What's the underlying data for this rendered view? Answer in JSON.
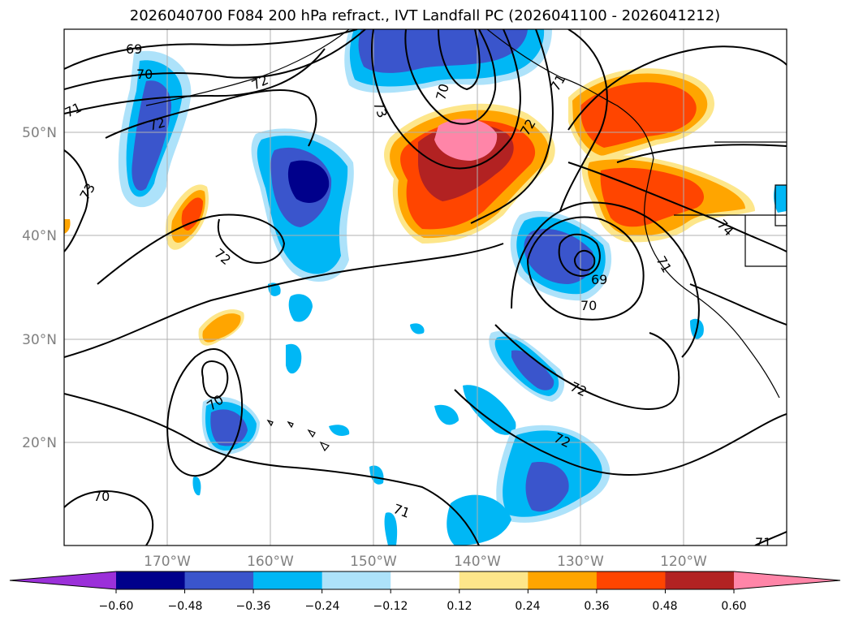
{
  "title": "2026040700 F084 200 hPa refract., IVT Landfall PC (2026041100 - 2026041212)",
  "map": {
    "lon_labels": [
      "170°W",
      "160°W",
      "150°W",
      "140°W",
      "130°W",
      "120°W"
    ],
    "lat_labels": [
      "50°N",
      "40°N",
      "30°N",
      "20°N"
    ],
    "lon_range": [
      -180,
      -110
    ],
    "lat_range": [
      10,
      60
    ],
    "gridlines": true
  },
  "colorbar": {
    "tick_labels": [
      "−0.60",
      "−0.48",
      "−0.36",
      "−0.24",
      "−0.12",
      "0.12",
      "0.24",
      "0.36",
      "0.48",
      "0.60"
    ],
    "colors": [
      "#9b30d9",
      "#00008b",
      "#3a55cc",
      "#00b7f5",
      "#ade2fa",
      "#ffffff",
      "#fde68a",
      "#ffa500",
      "#ff4500",
      "#b22222",
      "#ff85a8"
    ],
    "extend": "both"
  },
  "contour_labels": [
    "69",
    "70",
    "71",
    "72",
    "72",
    "73",
    "73",
    "70",
    "72",
    "71",
    "72",
    "74",
    "69",
    "70",
    "71",
    "72",
    "70",
    "72",
    "72",
    "71",
    "70",
    "71"
  ],
  "colors": {
    "contour": "#000000",
    "grid": "#b0b0b0",
    "tick_text": "#808080"
  }
}
